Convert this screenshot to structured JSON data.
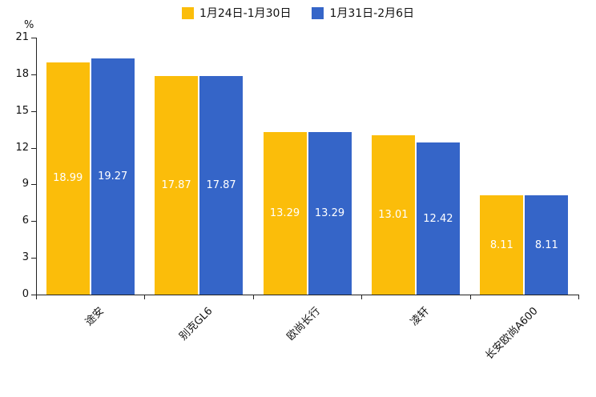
{
  "chart_data": {
    "type": "bar",
    "title": "",
    "categories": [
      "途安",
      "别克GL6",
      "欧尚长行",
      "凌轩",
      "长安欧尚A600"
    ],
    "series": [
      {
        "name": "1月24日-1月30日",
        "color": "#FBBD0A",
        "values": [
          18.99,
          17.87,
          13.29,
          13.01,
          8.11
        ]
      },
      {
        "name": "1月31日-2月6日",
        "color": "#3565C8",
        "values": [
          19.27,
          17.87,
          13.29,
          12.42,
          8.11
        ]
      }
    ],
    "xlabel": "",
    "ylabel": "%",
    "ylim": [
      0,
      21
    ],
    "yticks": [
      0,
      3,
      6,
      9,
      12,
      15,
      18,
      21
    ],
    "grid": false,
    "legend_position": "top",
    "value_labels": true,
    "value_label_color": "#ffffff",
    "axis_color": "#222222",
    "text_color": "#111111"
  }
}
